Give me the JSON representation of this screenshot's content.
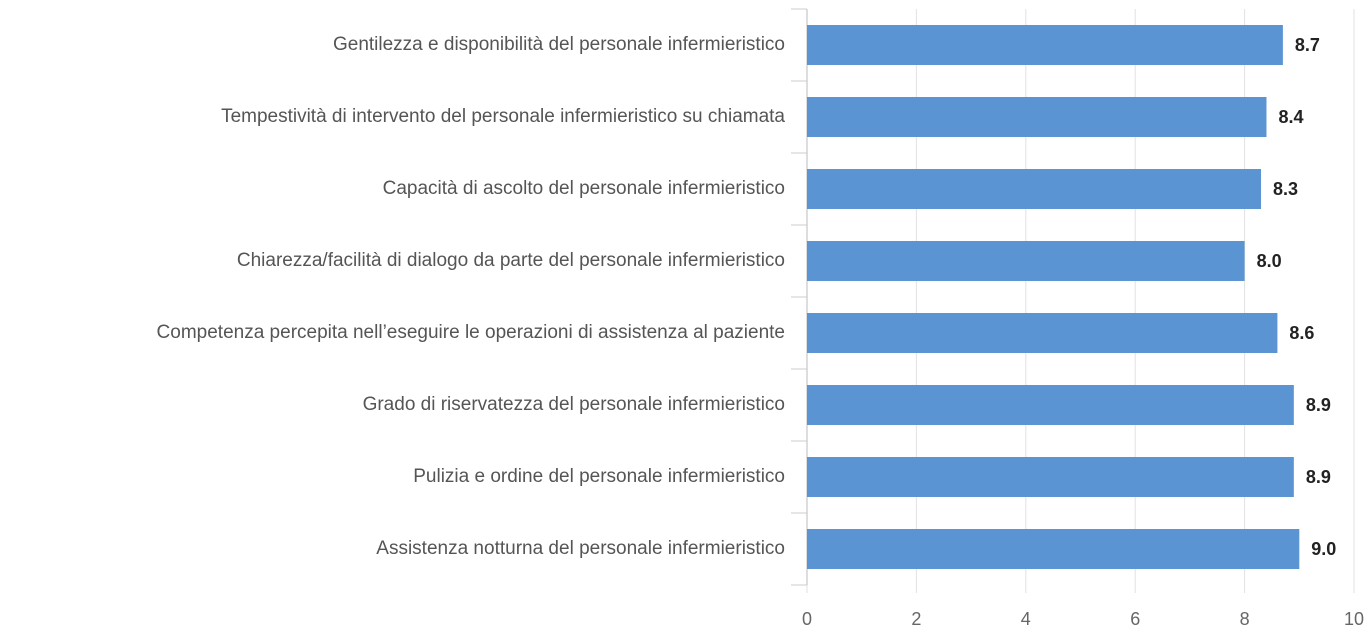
{
  "chart_data": {
    "type": "bar",
    "orientation": "horizontal",
    "categories": [
      "Gentilezza e disponibilità del personale infermieristico",
      "Tempestività di intervento del personale infermieristico su chiamata",
      "Capacità di ascolto del personale infermieristico",
      "Chiarezza/facilità di dialogo da parte del personale infermieristico",
      "Competenza percepita nell’eseguire le operazioni di assistenza al paziente",
      "Grado di riservatezza del personale infermieristico",
      "Pulizia e ordine del personale infermieristico",
      "Assistenza notturna del personale infermieristico"
    ],
    "values": [
      8.7,
      8.4,
      8.3,
      8.0,
      8.6,
      8.9,
      8.9,
      9.0
    ],
    "value_labels": [
      "8.7",
      "8.4",
      "8.3",
      "8.0",
      "8.6",
      "8.9",
      "8.9",
      "9.0"
    ],
    "color": "#5b94d3",
    "xlim": [
      0,
      10
    ],
    "xticks": [
      0,
      2,
      4,
      6,
      8,
      10
    ],
    "grid": true
  }
}
